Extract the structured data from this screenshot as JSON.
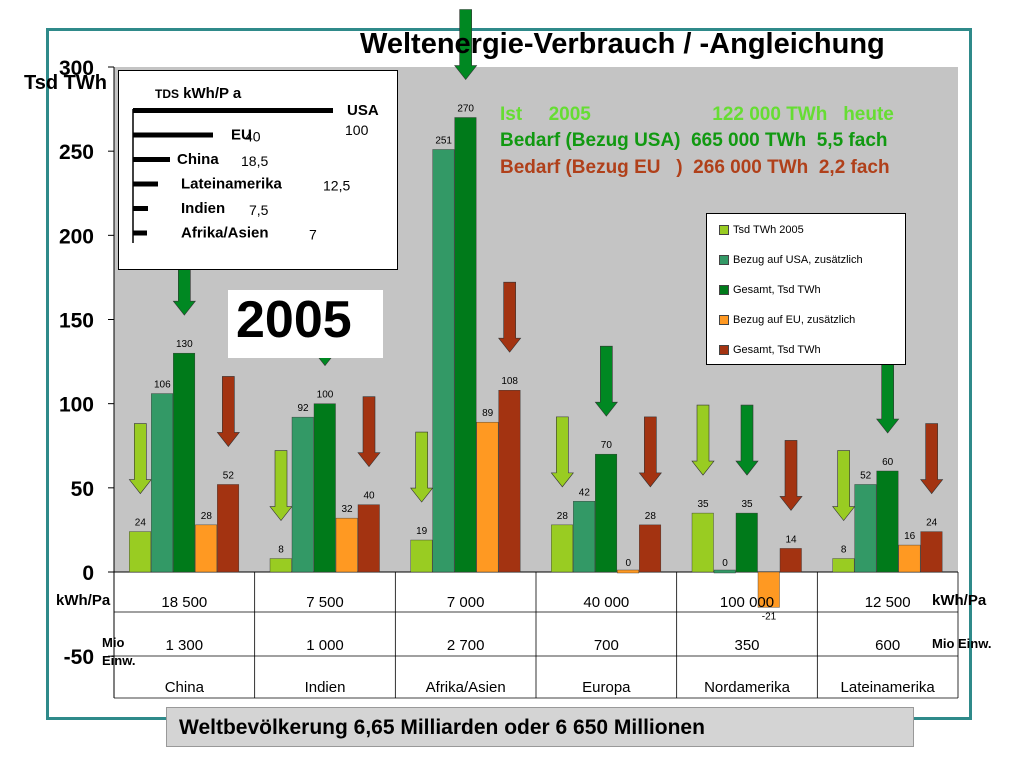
{
  "title": "Weltenergie-Verbrauch / -Angleichung",
  "y_axis_label": "Tsd TWh",
  "info_lines": [
    {
      "text": "Ist     2005                       122 000 TWh   heute",
      "color": "#66dd33"
    },
    {
      "text": "Bedarf (Bezug USA)  665 000 TWh  5,5 fach",
      "color": "#119911"
    },
    {
      "text": "Bedarf (Bezug EU   )  266 000 TWh  2,2 fach",
      "color": "#b0401a"
    }
  ],
  "year_label": "2005",
  "inset": {
    "title_prefix": "TDS",
    "title": "kWh/P a",
    "rows": [
      {
        "label": "USA",
        "value": "100",
        "bar": 100
      },
      {
        "label": "EU",
        "value": "40",
        "bar": 40
      },
      {
        "label": "China",
        "value": "18,5",
        "bar": 18.5
      },
      {
        "label": "Lateinamerika",
        "value": "12,5",
        "bar": 12.5
      },
      {
        "label": "Indien",
        "value": "7,5",
        "bar": 7.5
      },
      {
        "label": "Afrika/Asien",
        "value": "7",
        "bar": 7
      }
    ]
  },
  "legend": [
    {
      "label": "Tsd  TWh   2005",
      "color": "#99cc22"
    },
    {
      "label": "Bezug  auf USA, zusätzlich",
      "color": "#339966"
    },
    {
      "label": "Gesamt, Tsd  TWh",
      "color": "#007a1a"
    },
    {
      "label": "Bezug auf EU, zusätzlich",
      "color": "#ff9922"
    },
    {
      "label": "Gesamt, Tsd  TWh",
      "color": "#a33311"
    }
  ],
  "table": {
    "row1_label": "kWh/Pa",
    "row1_label_right": "kWh/Pa",
    "row2_label": "Mio\nEinw.",
    "row2_label_right": "Mio Einw."
  },
  "footer": "Weltbevölkerung  6,65  Milliarden   oder  6 650  Millionen",
  "chart_data": {
    "type": "bar",
    "categories": [
      "China",
      "Indien",
      "Afrika/Asien",
      "Europa",
      "Nordamerika",
      "Lateinamerika"
    ],
    "kwh_pa": [
      "18 500",
      "7 500",
      "7 000",
      "40 000",
      "100 000",
      "12 500"
    ],
    "mio_einw": [
      "1 300",
      "1 000",
      "2 700",
      "700",
      "350",
      "600"
    ],
    "series": [
      {
        "name": "Tsd  TWh   2005",
        "values": [
          24,
          8,
          19,
          28,
          35,
          8
        ]
      },
      {
        "name": "Bezug  auf USA, zusätzlich",
        "values": [
          106,
          92,
          251,
          42,
          0,
          52
        ]
      },
      {
        "name": "Gesamt, Tsd  TWh",
        "values": [
          130,
          100,
          270,
          70,
          35,
          60
        ]
      },
      {
        "name": "Bezug auf EU, zusätzlich",
        "values": [
          28,
          32,
          89,
          0,
          -21,
          16
        ]
      },
      {
        "name": "Gesamt, Tsd  TWh",
        "values": [
          52,
          40,
          108,
          28,
          14,
          24
        ]
      }
    ],
    "ylim": [
      -50,
      300
    ],
    "yticks": [
      -50,
      0,
      50,
      100,
      150,
      200,
      250,
      300
    ],
    "grid": false
  }
}
